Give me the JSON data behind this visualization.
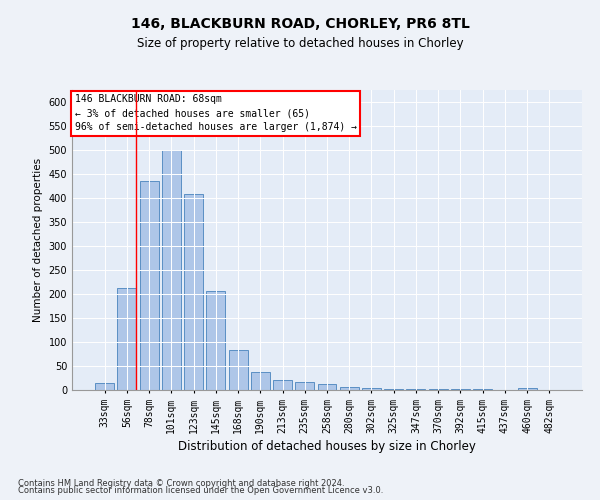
{
  "title1": "146, BLACKBURN ROAD, CHORLEY, PR6 8TL",
  "title2": "Size of property relative to detached houses in Chorley",
  "xlabel": "Distribution of detached houses by size in Chorley",
  "ylabel": "Number of detached properties",
  "categories": [
    "33sqm",
    "56sqm",
    "78sqm",
    "101sqm",
    "123sqm",
    "145sqm",
    "168sqm",
    "190sqm",
    "213sqm",
    "235sqm",
    "258sqm",
    "280sqm",
    "302sqm",
    "325sqm",
    "347sqm",
    "370sqm",
    "392sqm",
    "415sqm",
    "437sqm",
    "460sqm",
    "482sqm"
  ],
  "values": [
    15,
    213,
    435,
    500,
    408,
    207,
    83,
    37,
    20,
    17,
    12,
    6,
    4,
    3,
    2,
    2,
    2,
    2,
    0,
    5,
    0
  ],
  "bar_color": "#aec6e8",
  "bar_edge_color": "#5a8fc4",
  "red_line_x": 1.42,
  "annotation_lines": [
    "146 BLACKBURN ROAD: 68sqm",
    "← 3% of detached houses are smaller (65)",
    "96% of semi-detached houses are larger (1,874) →"
  ],
  "ylim": [
    0,
    625
  ],
  "yticks": [
    0,
    50,
    100,
    150,
    200,
    250,
    300,
    350,
    400,
    450,
    500,
    550,
    600
  ],
  "footnote1": "Contains HM Land Registry data © Crown copyright and database right 2024.",
  "footnote2": "Contains public sector information licensed under the Open Government Licence v3.0.",
  "background_color": "#eef2f8",
  "plot_background": "#e4ecf7",
  "title1_fontsize": 10,
  "title2_fontsize": 8.5,
  "ylabel_fontsize": 7.5,
  "xlabel_fontsize": 8.5,
  "tick_fontsize": 7,
  "footnote_fontsize": 6,
  "ann_fontsize": 7
}
